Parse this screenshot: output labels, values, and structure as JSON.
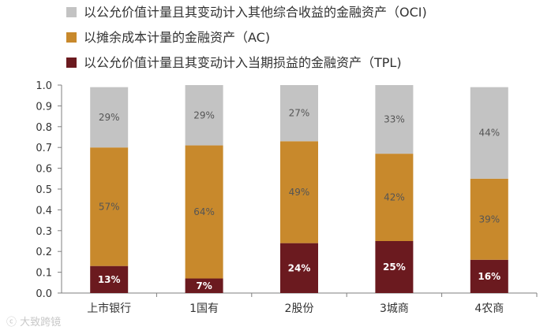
{
  "chart_data": {
    "type": "bar",
    "stacked": true,
    "categories": [
      "上市银行",
      "1国有",
      "2股份",
      "3城商",
      "4农商"
    ],
    "series": [
      {
        "name": "以公允价值计量且其变动计入当期损益的金融资产（TPL)",
        "values": [
          0.13,
          0.07,
          0.24,
          0.25,
          0.16
        ],
        "labels": [
          "13%",
          "7%",
          "24%",
          "25%",
          "16%"
        ],
        "color": "#6b1a1f"
      },
      {
        "name": "以摊余成本计量的金融资产（AC)",
        "values": [
          0.57,
          0.64,
          0.49,
          0.42,
          0.39
        ],
        "labels": [
          "57%",
          "64%",
          "49%",
          "42%",
          "39%"
        ],
        "color": "#c8892c"
      },
      {
        "name": "以公允价值计量且其变动计入其他综合收益的金融资产（OCI)",
        "values": [
          0.29,
          0.29,
          0.27,
          0.33,
          0.44
        ],
        "labels": [
          "29%",
          "29%",
          "27%",
          "33%",
          "44%"
        ],
        "color": "#c3c3c3"
      }
    ],
    "legend_order": [
      2,
      1,
      0
    ],
    "legend_position": "top-left",
    "ylim": [
      0,
      1.0
    ],
    "yticks": [
      0.0,
      0.1,
      0.2,
      0.3,
      0.4,
      0.5,
      0.6,
      0.7,
      0.8,
      0.9,
      1.0
    ],
    "ytick_labels": [
      "0.0",
      "0.1",
      "0.2",
      "0.3",
      "0.4",
      "0.5",
      "0.6",
      "0.7",
      "0.8",
      "0.9",
      "1.0"
    ],
    "grid": false
  },
  "watermark": "大致跨镜"
}
